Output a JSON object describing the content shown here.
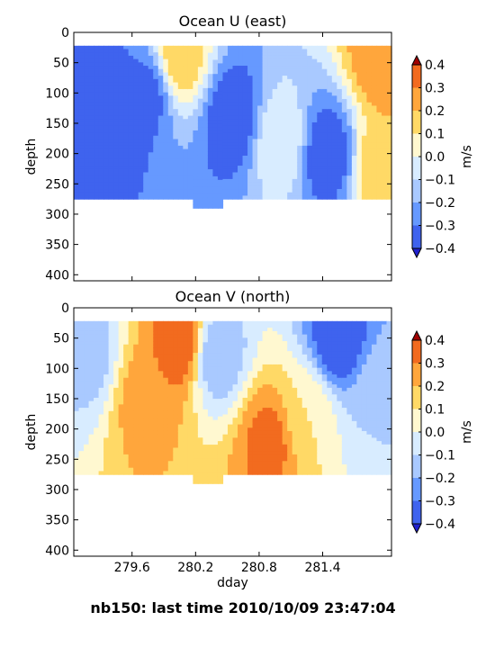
{
  "suptitle": "nb150: last time 2010/10/09 23:47:04",
  "colors": {
    "levels": [
      -0.4,
      -0.3,
      -0.2,
      -0.1,
      0.0,
      0.1,
      0.2,
      0.3,
      0.4
    ],
    "bands": [
      "#2929ee",
      "#3f63ee",
      "#6699ff",
      "#a9c9ff",
      "#d8ecff",
      "#fff8d0",
      "#ffd966",
      "#ffa63c",
      "#f26b1f",
      "#c8150a"
    ],
    "under": "#2020cc",
    "over": "#a00000"
  },
  "colorbar": {
    "label": "m/s",
    "ticks": [
      "0.4",
      "0.3",
      "0.2",
      "0.1",
      "0.0",
      "−0.1",
      "−0.2",
      "−0.3",
      "−0.4"
    ]
  },
  "chart_data": [
    {
      "type": "heatmap",
      "title": "Ocean U (east)",
      "xlabel": "",
      "ylabel": "depth",
      "colorbar_label": "m/s",
      "xlim": [
        279.05,
        282.05
      ],
      "ylim": [
        410,
        0
      ],
      "yticks": [
        0,
        50,
        100,
        150,
        200,
        250,
        300,
        350,
        400
      ],
      "xticks": [
        279.6,
        280.2,
        280.8,
        281.4
      ],
      "xticklabels_shown": false,
      "data_depth_range": [
        22,
        275
      ],
      "max_depth_near_280_3": 290,
      "features": [
        {
          "dday": 279.35,
          "depth": 130,
          "value": -0.4
        },
        {
          "dday": 279.75,
          "depth": 100,
          "value": -0.35
        },
        {
          "dday": 280.05,
          "depth": 40,
          "value": 0.2
        },
        {
          "dday": 280.55,
          "depth": 140,
          "value": -0.4
        },
        {
          "dday": 281.0,
          "depth": 180,
          "value": 0.0
        },
        {
          "dday": 281.45,
          "depth": 200,
          "value": -0.4
        },
        {
          "dday": 281.95,
          "depth": 40,
          "value": 0.3
        },
        {
          "dday": 281.95,
          "depth": 220,
          "value": 0.2
        }
      ]
    },
    {
      "type": "heatmap",
      "title": "Ocean V (north)",
      "xlabel": "dday",
      "ylabel": "depth",
      "colorbar_label": "m/s",
      "xlim": [
        279.05,
        282.05
      ],
      "ylim": [
        410,
        0
      ],
      "yticks": [
        0,
        50,
        100,
        150,
        200,
        250,
        300,
        350,
        400
      ],
      "xticks": [
        279.6,
        280.2,
        280.8,
        281.4
      ],
      "xticklabels": [
        "279.6",
        "280.2",
        "280.8",
        "281.4"
      ],
      "data_depth_range": [
        22,
        275
      ],
      "max_depth_near_280_3": 290,
      "features": [
        {
          "dday": 279.2,
          "depth": 80,
          "value": -0.15
        },
        {
          "dday": 279.7,
          "depth": 150,
          "value": 0.25
        },
        {
          "dday": 280.05,
          "depth": 60,
          "value": 0.4
        },
        {
          "dday": 280.4,
          "depth": 80,
          "value": -0.2
        },
        {
          "dday": 280.9,
          "depth": 220,
          "value": 0.35
        },
        {
          "dday": 281.25,
          "depth": 180,
          "value": 0.1
        },
        {
          "dday": 281.55,
          "depth": 50,
          "value": -0.4
        },
        {
          "dday": 281.95,
          "depth": 150,
          "value": -0.1
        }
      ]
    }
  ]
}
